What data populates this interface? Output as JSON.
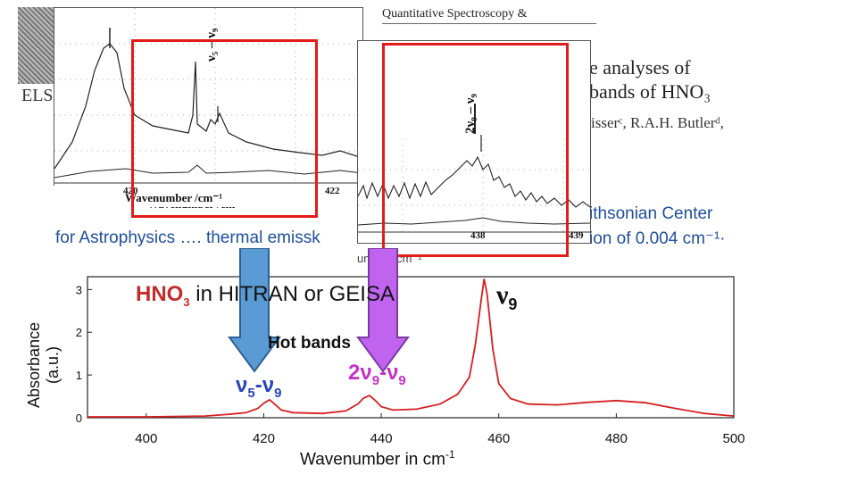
{
  "paper": {
    "journal_header": "Quantitative Spectroscopy &",
    "title_line1": "e analyses of",
    "title_line2": "bands of HNO₃",
    "authors": "isserᶜ, R.A.H. Butlerᵈ,",
    "publisher_mark": "ELS"
  },
  "slide_text": {
    "line1_right": "ithsonian Center",
    "line2_left": "for Astrophysics …. thermal emissk",
    "line2_right": "ion of 0.004 cm⁻¹·",
    "fragment_below": "umber /cm⁻¹"
  },
  "inset1": {
    "xlabel": "Wavenumber /cm⁻¹",
    "ticks": [
      "420",
      "422"
    ],
    "annotation": "ν₅ – ν₉"
  },
  "inset2": {
    "ticks": [
      "438",
      "439"
    ],
    "annotation": "2ν₉ – ν₉"
  },
  "chart_data": {
    "type": "line",
    "title": "HNO3 in HITRAN or GEISA",
    "title_parts": {
      "molecule": "HNO",
      "molecule_sub": "3",
      "rest": " in HITRAN or GEISA"
    },
    "xlabel": "Wavenumber in cm",
    "xlabel_sup": "-1",
    "ylabel": "Absorbance (a.u.)",
    "xlim": [
      390,
      500
    ],
    "ylim": [
      0,
      3.3
    ],
    "x_ticks": [
      "400",
      "420",
      "440",
      "460",
      "480",
      "500"
    ],
    "y_ticks": [
      "0",
      "1",
      "2",
      "3"
    ],
    "series": [
      {
        "name": "HNO3 absorbance",
        "color": "#d42020",
        "x": [
          390,
          400,
          410,
          414,
          417,
          419,
          420,
          421,
          422,
          423,
          425,
          430,
          434,
          436,
          437,
          438,
          439,
          440,
          442,
          446,
          450,
          453,
          455,
          456,
          457,
          457.5,
          458,
          459,
          460,
          462,
          465,
          470,
          475,
          480,
          485,
          490,
          495,
          500
        ],
        "y": [
          0.02,
          0.02,
          0.04,
          0.08,
          0.12,
          0.22,
          0.34,
          0.42,
          0.3,
          0.18,
          0.12,
          0.1,
          0.16,
          0.32,
          0.46,
          0.52,
          0.4,
          0.26,
          0.18,
          0.2,
          0.32,
          0.55,
          0.95,
          1.7,
          2.75,
          3.25,
          2.9,
          1.6,
          0.8,
          0.45,
          0.32,
          0.3,
          0.36,
          0.4,
          0.35,
          0.22,
          0.1,
          0.04
        ]
      }
    ],
    "annotations": {
      "nu9": "ν",
      "nu9_sub": "9",
      "hot_bands": "Hot bands",
      "nu5_nu9": {
        "a": "ν",
        "a_sub": "5",
        "sep": "-",
        "b": "ν",
        "b_sub": "9"
      },
      "two_nu9_nu9": {
        "coef": "2",
        "a": "ν",
        "a_sub": "9",
        "sep": "-",
        "b": "ν",
        "b_sub": "9"
      }
    }
  },
  "colors": {
    "red_box": "#e21b1b",
    "blue_arrow": "#5b9bd5",
    "purple_arrow": "#c064f0",
    "text_blue": "#1f4e9c"
  }
}
